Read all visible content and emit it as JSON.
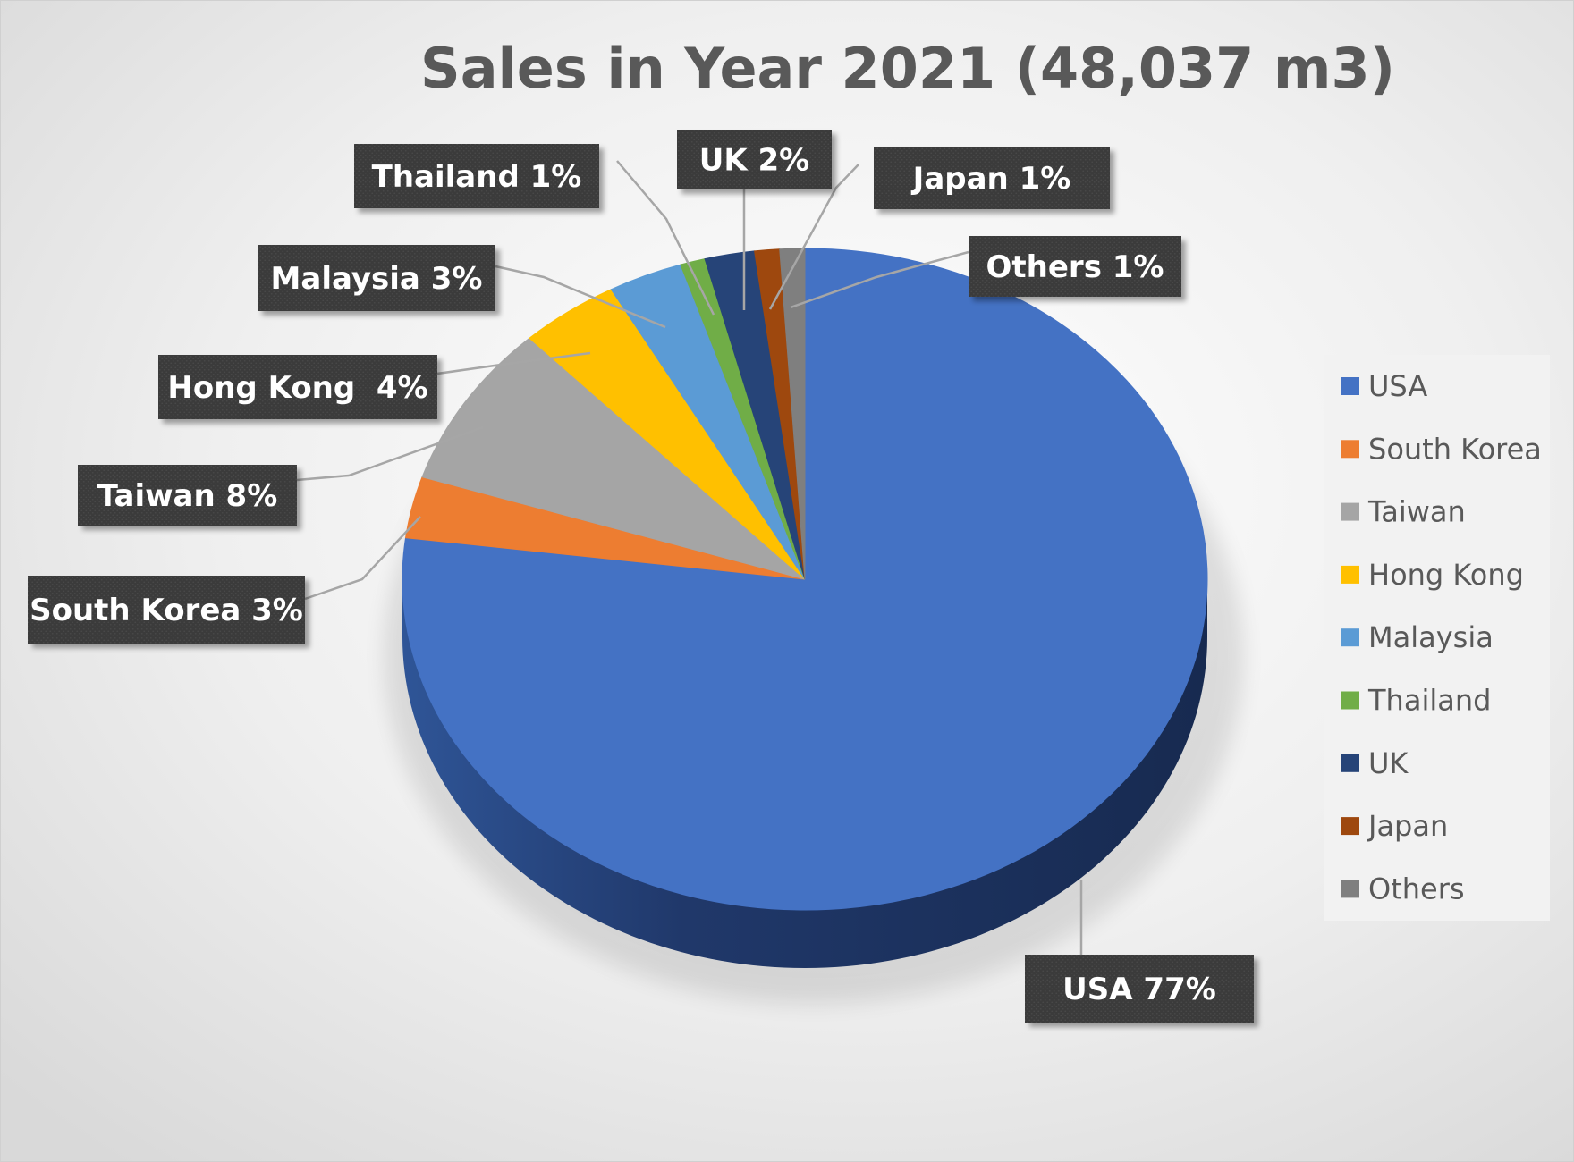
{
  "chart_data": {
    "type": "pie",
    "title": "Sales in Year 2021 (48,037 m3)",
    "categories": [
      "USA",
      "South Korea",
      "Taiwan",
      "Hong Kong",
      "Malaysia",
      "Thailand",
      "UK",
      "Japan",
      "Others"
    ],
    "values": [
      77,
      3,
      8,
      4,
      3,
      1,
      2,
      1,
      1
    ],
    "data_labels": [
      "USA 77%",
      "South Korea 3%",
      "Taiwan 8%",
      "Hong Kong  4%",
      "Malaysia 3%",
      "Thailand 1%",
      "UK 2%",
      "Japan 1%",
      "Others 1%"
    ],
    "colors": [
      "#4472C4",
      "#ED7D31",
      "#A5A5A5",
      "#FFC000",
      "#5B9BD5",
      "#70AD47",
      "#264478",
      "#9E480E",
      "#7F7F7F"
    ],
    "legend_position": "right",
    "style": "3d-pie"
  }
}
